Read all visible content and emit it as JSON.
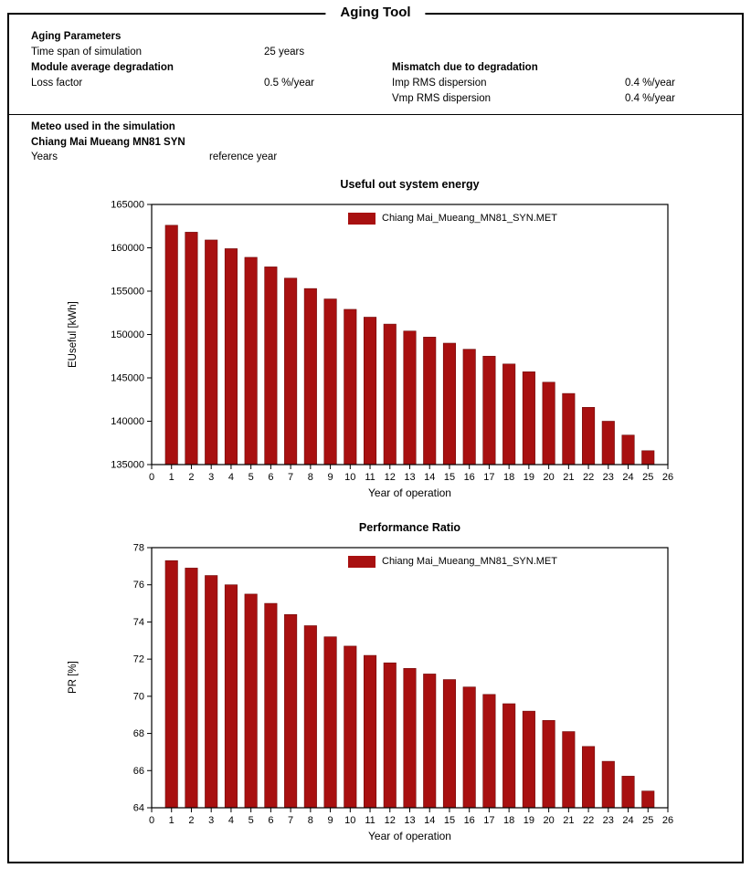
{
  "title": "Aging Tool",
  "aging_parameters": {
    "heading": "Aging Parameters",
    "time_span_label": "Time span of simulation",
    "time_span_value": "25 years",
    "module_degradation_heading": "Module average degradation",
    "loss_factor_label": "Loss factor",
    "loss_factor_value": "0.5 %/year",
    "mismatch_heading": "Mismatch due to degradation",
    "imp_label": "Imp RMS dispersion",
    "imp_value": "0.4 %/year",
    "vmp_label": "Vmp RMS dispersion",
    "vmp_value": "0.4 %/year"
  },
  "meteo": {
    "heading": "Meteo used in the simulation",
    "site": "Chiang Mai Mueang MN81 SYN",
    "years_label": "Years",
    "years_value": "reference year"
  },
  "chart_data": [
    {
      "type": "bar",
      "title": "Useful out system energy",
      "xlabel": "Year of operation",
      "ylabel": "EUseful [kWh]",
      "legend": [
        "Chiang Mai_Mueang_MN81_SYN.MET"
      ],
      "legend_position": "top-center-inside",
      "bar_color": "#a81010",
      "bar_edge": "#6e0a0a",
      "ylim": [
        135000,
        165000
      ],
      "ytick_step": 5000,
      "xlim": [
        0,
        26
      ],
      "grid": false,
      "categories": [
        1,
        2,
        3,
        4,
        5,
        6,
        7,
        8,
        9,
        10,
        11,
        12,
        13,
        14,
        15,
        16,
        17,
        18,
        19,
        20,
        21,
        22,
        23,
        24,
        25
      ],
      "values": [
        162600,
        161800,
        160900,
        159900,
        158900,
        157800,
        156500,
        155300,
        154100,
        152900,
        152000,
        151200,
        150400,
        149700,
        149000,
        148300,
        147500,
        146600,
        145700,
        144500,
        143200,
        141600,
        140000,
        138400,
        136600
      ]
    },
    {
      "type": "bar",
      "title": "Performance Ratio",
      "xlabel": "Year of operation",
      "ylabel": "PR [%]",
      "legend": [
        "Chiang Mai_Mueang_MN81_SYN.MET"
      ],
      "legend_position": "top-center-inside",
      "bar_color": "#a81010",
      "bar_edge": "#6e0a0a",
      "ylim": [
        64,
        78
      ],
      "ytick_step": 2,
      "xlim": [
        0,
        26
      ],
      "grid": false,
      "categories": [
        1,
        2,
        3,
        4,
        5,
        6,
        7,
        8,
        9,
        10,
        11,
        12,
        13,
        14,
        15,
        16,
        17,
        18,
        19,
        20,
        21,
        22,
        23,
        24,
        25
      ],
      "values": [
        77.3,
        76.9,
        76.5,
        76.0,
        75.5,
        75.0,
        74.4,
        73.8,
        73.2,
        72.7,
        72.2,
        71.8,
        71.5,
        71.2,
        70.9,
        70.5,
        70.1,
        69.6,
        69.2,
        68.7,
        68.1,
        67.3,
        66.5,
        65.7,
        64.9
      ]
    }
  ]
}
